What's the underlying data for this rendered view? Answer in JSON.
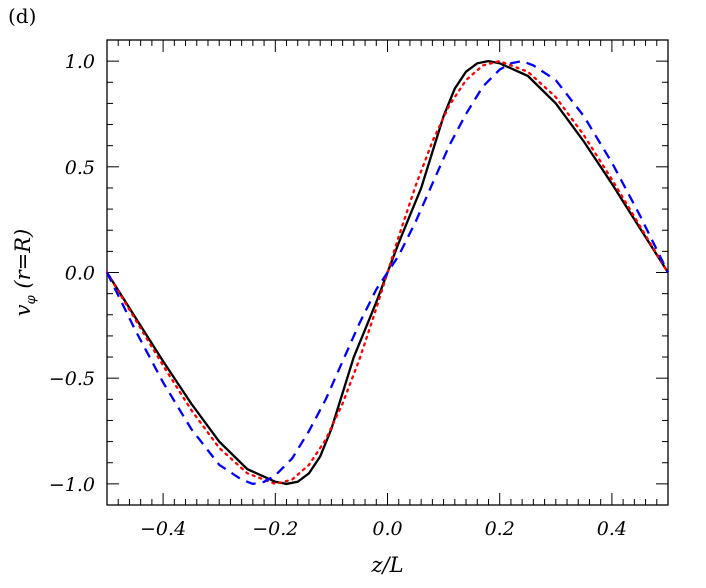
{
  "chart_data": {
    "type": "line",
    "panel_label": "(d)",
    "xlabel": "z/L",
    "ylabel": "v_φ (r=R)",
    "ylabel_parts": {
      "v": "v",
      "phi": "φ",
      "args": "(r=R)"
    },
    "xlim": [
      -0.5,
      0.5
    ],
    "ylim": [
      -1.1,
      1.1
    ],
    "x_ticks": [
      -0.4,
      -0.2,
      0.0,
      0.2,
      0.4
    ],
    "x_tick_labels": [
      "−0.4",
      "−0.2",
      "0.0",
      "0.2",
      "0.4"
    ],
    "y_ticks": [
      -1.0,
      -0.5,
      0.0,
      0.5,
      1.0
    ],
    "y_tick_labels": [
      "−1.0",
      "−0.5",
      "0.0",
      "0.5",
      "1.0"
    ],
    "grid": false,
    "legend": "none",
    "series": [
      {
        "style": "solid",
        "color": "#000000",
        "x": [
          -0.5,
          -0.45,
          -0.4,
          -0.35,
          -0.3,
          -0.25,
          -0.2,
          -0.18,
          -0.16,
          -0.14,
          -0.12,
          -0.1,
          -0.08,
          -0.06,
          -0.04,
          -0.02,
          0.0,
          0.02,
          0.04,
          0.06,
          0.08,
          0.1,
          0.12,
          0.14,
          0.16,
          0.18,
          0.2,
          0.25,
          0.3,
          0.35,
          0.4,
          0.45,
          0.5
        ],
        "y": [
          0.0,
          -0.21,
          -0.42,
          -0.62,
          -0.8,
          -0.93,
          -0.99,
          -1.0,
          -0.99,
          -0.95,
          -0.87,
          -0.74,
          -0.57,
          -0.4,
          -0.27,
          -0.14,
          0.0,
          0.14,
          0.27,
          0.4,
          0.57,
          0.74,
          0.87,
          0.95,
          0.99,
          1.0,
          0.99,
          0.93,
          0.8,
          0.62,
          0.42,
          0.21,
          0.0
        ]
      },
      {
        "style": "dotted",
        "color": "#ff0000",
        "x": [
          -0.5,
          -0.45,
          -0.4,
          -0.35,
          -0.3,
          -0.25,
          -0.21,
          -0.2,
          -0.17,
          -0.14,
          -0.11,
          -0.08,
          -0.05,
          -0.02,
          0.0,
          0.02,
          0.05,
          0.08,
          0.11,
          0.14,
          0.17,
          0.2,
          0.21,
          0.25,
          0.3,
          0.35,
          0.4,
          0.45,
          0.5
        ],
        "y": [
          0.0,
          -0.22,
          -0.44,
          -0.65,
          -0.83,
          -0.95,
          -0.99,
          -1.0,
          -0.98,
          -0.91,
          -0.79,
          -0.62,
          -0.41,
          -0.17,
          0.0,
          0.17,
          0.41,
          0.62,
          0.79,
          0.91,
          0.98,
          1.0,
          0.99,
          0.95,
          0.83,
          0.65,
          0.44,
          0.22,
          0.0
        ]
      },
      {
        "style": "dashed",
        "color": "#0000ff",
        "x": [
          -0.5,
          -0.45,
          -0.4,
          -0.35,
          -0.3,
          -0.26,
          -0.24,
          -0.22,
          -0.2,
          -0.17,
          -0.14,
          -0.11,
          -0.08,
          -0.05,
          -0.02,
          0.0,
          0.02,
          0.05,
          0.08,
          0.11,
          0.14,
          0.17,
          0.2,
          0.22,
          0.24,
          0.26,
          0.3,
          0.35,
          0.4,
          0.45,
          0.5
        ],
        "y": [
          0.0,
          -0.27,
          -0.52,
          -0.74,
          -0.91,
          -0.98,
          -1.0,
          -0.99,
          -0.96,
          -0.88,
          -0.75,
          -0.6,
          -0.42,
          -0.24,
          -0.08,
          0.0,
          0.08,
          0.24,
          0.42,
          0.6,
          0.75,
          0.88,
          0.96,
          0.99,
          1.0,
          0.98,
          0.91,
          0.74,
          0.52,
          0.27,
          0.0
        ]
      }
    ]
  }
}
